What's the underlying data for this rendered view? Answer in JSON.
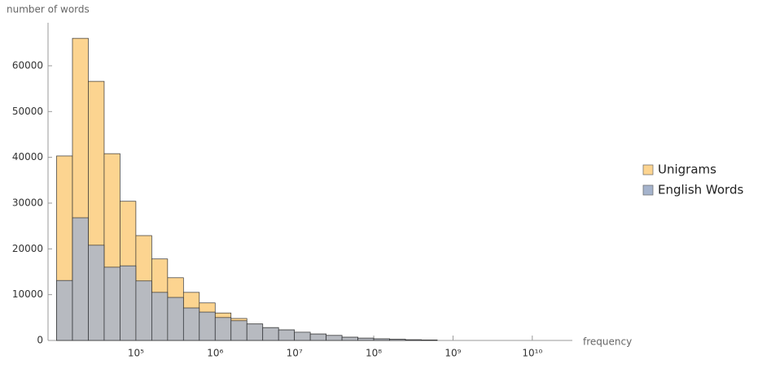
{
  "chart_data": {
    "type": "histogram",
    "ylabel": "number of words",
    "xlabel": "frequency",
    "xscale": "log",
    "bins": [
      10000,
      15849,
      25119,
      39811,
      63096,
      100000,
      158489,
      251189,
      398107,
      630957,
      1000000,
      1584893,
      2511886,
      3981072,
      6309573,
      10000000,
      15848932,
      25118864,
      39810717,
      63095734,
      100000000,
      158489319,
      251188643,
      398107171,
      630957344
    ],
    "series": [
      {
        "name": "Unigrams",
        "color": "#fcd490",
        "values": [
          40300,
          66000,
          56600,
          40800,
          30400,
          22900,
          17800,
          13700,
          10500,
          8200,
          6000,
          4800,
          3600,
          2800,
          2300,
          1800,
          1400,
          1100,
          700,
          500,
          350,
          250,
          150,
          100
        ]
      },
      {
        "name": "English Words",
        "color": "#a5b3cc",
        "values": [
          13100,
          26800,
          20800,
          16000,
          16300,
          13000,
          10500,
          9400,
          7100,
          6200,
          5000,
          4300,
          3600,
          2800,
          2300,
          1800,
          1400,
          1100,
          700,
          500,
          350,
          250,
          150,
          100
        ]
      }
    ],
    "xlim": [
      7800,
      32000000000
    ],
    "xticks": [
      {
        "value": 100000,
        "label": "10⁵"
      },
      {
        "value": 1000000,
        "label": "10⁶"
      },
      {
        "value": 10000000,
        "label": "10⁷"
      },
      {
        "value": 100000000,
        "label": "10⁸"
      },
      {
        "value": 1000000000,
        "label": "10⁹"
      },
      {
        "value": 10000000000,
        "label": "10¹⁰"
      }
    ],
    "ylim": [
      0,
      69400
    ],
    "yticks": [
      0,
      10000,
      20000,
      30000,
      40000,
      50000,
      60000
    ],
    "legend": "right"
  }
}
